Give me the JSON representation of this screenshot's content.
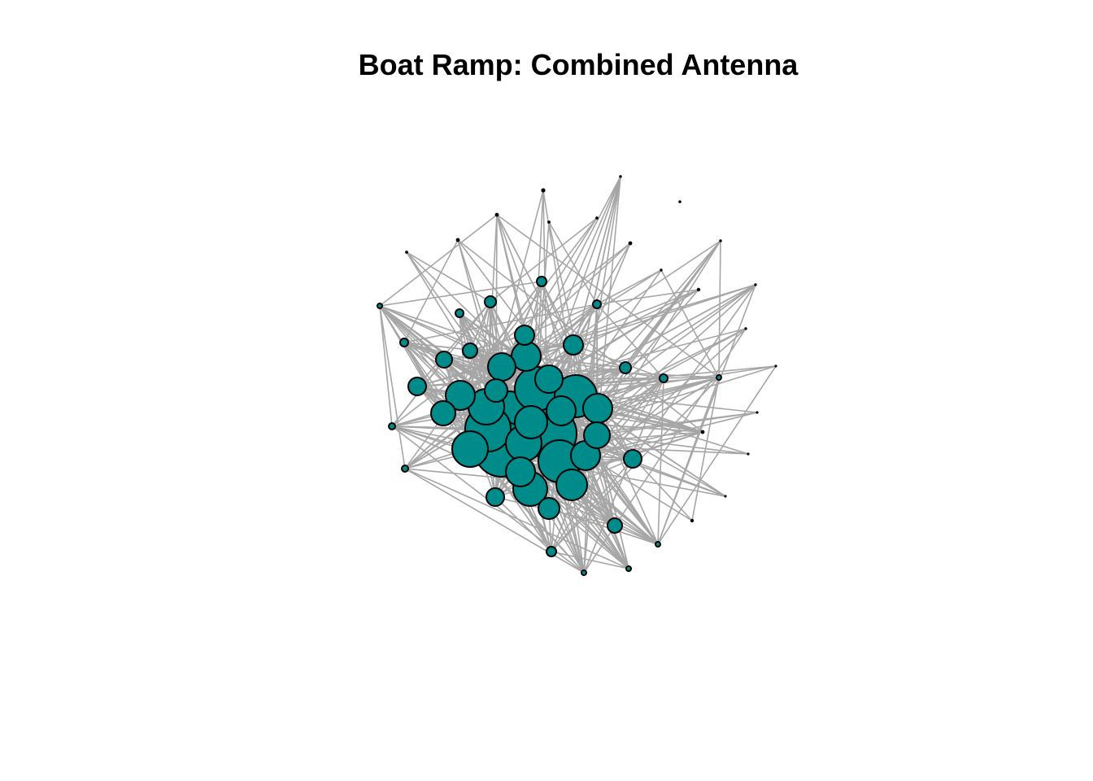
{
  "title": "Boat Ramp: Combined Antenna",
  "colors": {
    "node_fill": "#008B8B",
    "node_stroke": "#000000",
    "edge": "#A6A6A6",
    "background": "#FFFFFF"
  },
  "network": {
    "layout": "force-directed",
    "node_shape": "circle",
    "node_size_encoding": "degree"
  }
}
